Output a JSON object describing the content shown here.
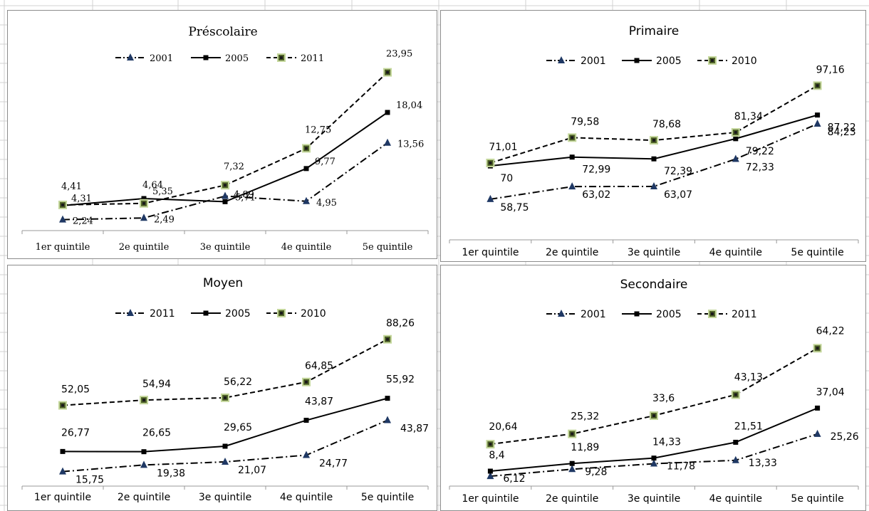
{
  "chart_data": [
    {
      "type": "line",
      "title": "Préscolaire",
      "categories": [
        "1er quintile",
        "2e quintile",
        "3e quintile",
        "4e quintile",
        "5e quintile"
      ],
      "ylim": [
        0,
        28
      ],
      "legend_position": "top-center",
      "series": [
        {
          "name": "2001",
          "style": "dashdot",
          "marker": "triangle",
          "values": [
            2.24,
            2.49,
            5.71,
            4.95,
            13.56
          ],
          "labels": [
            "2,24",
            "2,49",
            "5,71",
            "4,95",
            "13,56"
          ]
        },
        {
          "name": "2005",
          "style": "solid",
          "marker": "square",
          "values": [
            4.31,
            5.35,
            4.89,
            9.77,
            18.04
          ],
          "labels": [
            "4,31",
            "5,35",
            "4,89",
            "9,77",
            "18,04"
          ]
        },
        {
          "name": "2011",
          "style": "dashed",
          "marker": "green-square",
          "values": [
            4.41,
            4.64,
            7.32,
            12.75,
            23.95
          ],
          "labels": [
            "4,41",
            "4,64",
            "7,32",
            "12,75",
            "23,95"
          ]
        }
      ]
    },
    {
      "type": "line",
      "title": "Primaire",
      "categories": [
        "1er quintile",
        "2e quintile",
        "3e quintile",
        "4e quintile",
        "5e quintile"
      ],
      "ylim": [
        45,
        110
      ],
      "legend_position": "top-center",
      "series": [
        {
          "name": "2001",
          "style": "dashdot",
          "marker": "triangle",
          "values": [
            58.75,
            63.02,
            63.07,
            72.33,
            84.23
          ],
          "labels": [
            "58,75",
            "63,02",
            "63,07",
            "72,33",
            "84,23"
          ]
        },
        {
          "name": "2005",
          "style": "solid",
          "marker": "square",
          "values": [
            70,
            72.99,
            72.39,
            79.22,
            87.22
          ],
          "labels": [
            "70",
            "72,99",
            "72,39",
            "79,22",
            "87,22"
          ]
        },
        {
          "name": "2010",
          "style": "dashed",
          "marker": "green-square",
          "values": [
            71.01,
            79.58,
            78.68,
            81.34,
            97.16
          ],
          "labels": [
            "71,01",
            "79,58",
            "78,68",
            "81,34",
            "97,16"
          ]
        }
      ]
    },
    {
      "type": "line",
      "title": "Moyen",
      "categories": [
        "1er quintile",
        "2e quintile",
        "3e quintile",
        "4e quintile",
        "5e quintile"
      ],
      "ylim": [
        0,
        110
      ],
      "legend_position": "top-center",
      "series": [
        {
          "name": "2011",
          "style": "dashdot",
          "marker": "triangle",
          "values": [
            15.75,
            19.38,
            21.07,
            24.77,
            43.87
          ],
          "labels": [
            "15,75",
            "19,38",
            "21,07",
            "24,77",
            "43,87"
          ]
        },
        {
          "name": "2005",
          "style": "solid",
          "marker": "square",
          "values": [
            26.77,
            26.65,
            29.65,
            43.87,
            55.92
          ],
          "labels": [
            "26,77",
            "26,65",
            "29,65",
            "43,87",
            "55,92"
          ]
        },
        {
          "name": "2010",
          "style": "dashed",
          "marker": "green-square",
          "values": [
            52.05,
            54.94,
            56.22,
            64.85,
            88.26
          ],
          "labels": [
            "52,05",
            "54,94",
            "56,22",
            "64,85",
            "88,26"
          ]
        }
      ]
    },
    {
      "type": "line",
      "title": "Secondaire",
      "categories": [
        "1er quintile",
        "2e quintile",
        "3e quintile",
        "4e quintile",
        "5e quintile"
      ],
      "ylim": [
        0,
        85
      ],
      "legend_position": "top-center",
      "series": [
        {
          "name": "2001",
          "style": "dashdot",
          "marker": "triangle",
          "values": [
            6.12,
            9.28,
            11.78,
            13.33,
            25.26
          ],
          "labels": [
            "6,12",
            "9,28",
            "11,78",
            "13,33",
            "25,26"
          ]
        },
        {
          "name": "2005",
          "style": "solid",
          "marker": "square",
          "values": [
            8.4,
            11.89,
            14.33,
            21.51,
            37.04
          ],
          "labels": [
            "8,4",
            "11,89",
            "14,33",
            "21,51",
            "37,04"
          ]
        },
        {
          "name": "2011",
          "style": "dashed",
          "marker": "green-square",
          "values": [
            20.64,
            25.32,
            33.6,
            43.13,
            64.22
          ],
          "labels": [
            "20,64",
            "25,32",
            "33,6",
            "43,13",
            "64,22"
          ]
        }
      ]
    }
  ],
  "colors": {
    "line": "#000000",
    "triangle_marker": "#1f3864",
    "square_marker_fill": "#4f6228",
    "square_marker_outline": "#c4d79b",
    "panel_border": "#8c8c8c",
    "background_grid": "#d0d0d0"
  }
}
